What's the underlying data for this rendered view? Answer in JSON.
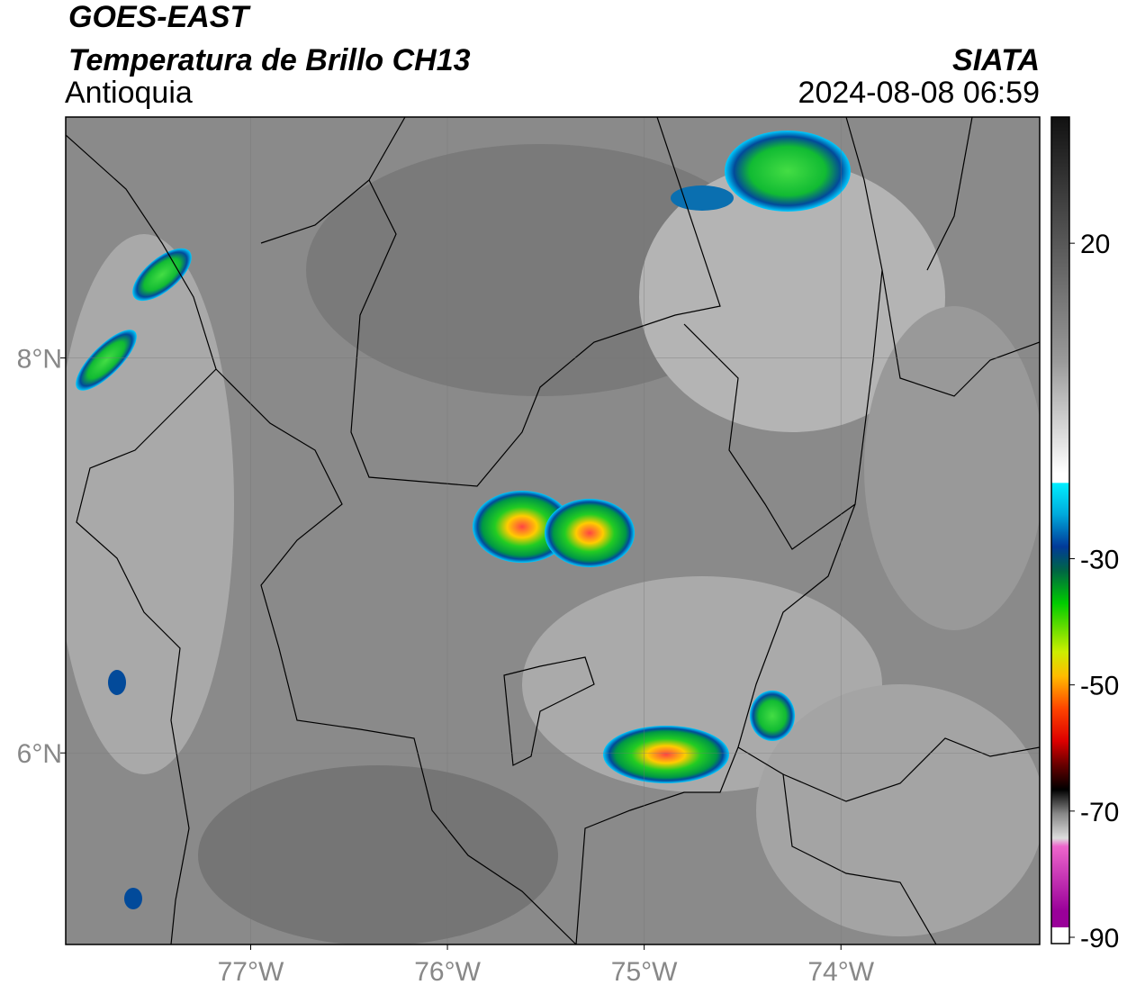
{
  "header": {
    "title": "GOES-EAST",
    "subtitle": "Temperatura de Brillo CH13",
    "region": "Antioquia",
    "source": "SIATA",
    "datetime": "2024-08-08 06:59"
  },
  "map": {
    "xlim": [
      -77.94,
      -72.99
    ],
    "ylim": [
      5.03,
      9.22
    ],
    "xticks": [
      {
        "value": -77,
        "label": "77°W"
      },
      {
        "value": -76,
        "label": "76°W"
      },
      {
        "value": -75,
        "label": "75°W"
      },
      {
        "value": -74,
        "label": "74°W"
      }
    ],
    "yticks": [
      {
        "value": 8,
        "label": "8°N"
      },
      {
        "value": 6,
        "label": "6°N"
      }
    ]
  },
  "colorbar": {
    "range": [
      -91,
      40
    ],
    "ticks": [
      20,
      -30,
      -50,
      -70,
      -90
    ]
  }
}
